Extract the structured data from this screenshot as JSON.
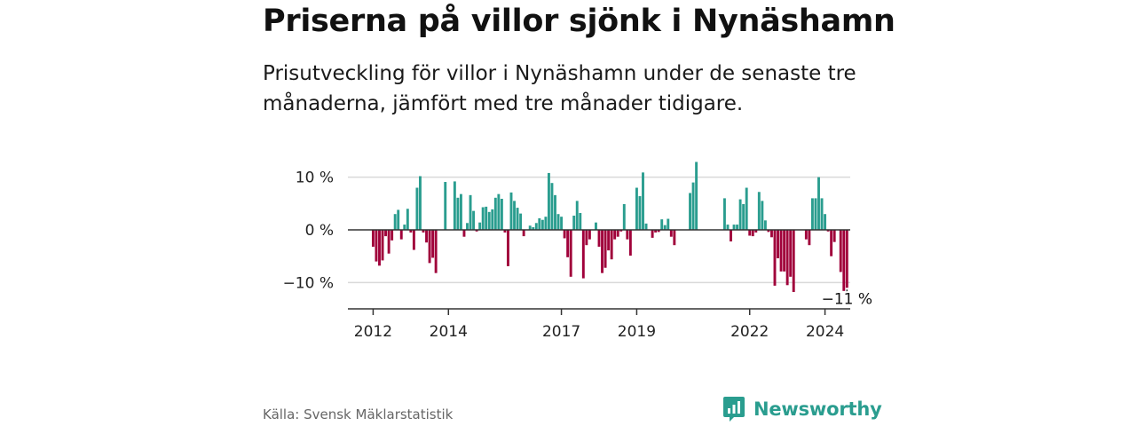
{
  "header": {
    "title": "Priserna på villor sjönk i Nynäshamn",
    "subtitle": "Prisutveckling för villor i Nynäshamn under de senaste tre månaderna, jämfört med tre månader tidigare."
  },
  "chart_data": {
    "type": "bar",
    "title": "Priserna på villor sjönk i Nynäshamn",
    "xlabel": "",
    "ylabel": "",
    "ylim": [
      -15,
      15
    ],
    "y_ticks": [
      {
        "value": 10,
        "label": "10 %"
      },
      {
        "value": 0,
        "label": "0 %"
      },
      {
        "value": -10,
        "label": "−10 %"
      }
    ],
    "x_range": [
      2011.33,
      2024.67
    ],
    "x_ticks": [
      {
        "value": 2012,
        "label": "2012"
      },
      {
        "value": 2014,
        "label": "2014"
      },
      {
        "value": 2017,
        "label": "2017"
      },
      {
        "value": 2019,
        "label": "2019"
      },
      {
        "value": 2022,
        "label": "2022"
      },
      {
        "value": 2024,
        "label": "2024"
      }
    ],
    "start_year": 2012,
    "start_month": 1,
    "values": [
      -3.2,
      -6,
      -6.8,
      -5.8,
      -1.2,
      -4.5,
      -2,
      3,
      3.8,
      -1.8,
      1,
      4,
      -0.5,
      -3.8,
      8,
      10.2,
      -0.5,
      -2.4,
      -6.3,
      -5.3,
      -8.2,
      0,
      0,
      9.1,
      0,
      0,
      9.2,
      6.1,
      6.8,
      -1.3,
      1.3,
      6.6,
      3.6,
      -0.3,
      1.4,
      4.3,
      4.4,
      3.4,
      3.9,
      6.1,
      6.8,
      5.9,
      -0.5,
      -6.9,
      7.1,
      5.5,
      4.2,
      3.1,
      -1.2,
      0,
      0.8,
      0.5,
      1.3,
      2.2,
      1.9,
      2.5,
      10.8,
      8.9,
      6.6,
      3,
      2.5,
      -1.6,
      -5.2,
      -8.9,
      2.7,
      5.5,
      3.2,
      -9.2,
      -2.9,
      -1.8,
      0,
      1.4,
      -3.2,
      -8.2,
      -7.2,
      -3.9,
      -5.6,
      -1.8,
      -1.3,
      -0.3,
      4.9,
      -1.8,
      -4.9,
      0,
      8,
      6.4,
      10.9,
      1.2,
      0,
      -1.5,
      -0.5,
      -0.4,
      2,
      0.9,
      2.1,
      -1.3,
      -2.9,
      0,
      0,
      0,
      0,
      7,
      9,
      12.9,
      0,
      0,
      0,
      0,
      0,
      0,
      0,
      0,
      6,
      1,
      -2.2,
      1,
      1,
      5.8,
      4.9,
      8,
      -1.1,
      -1.2,
      -0.5,
      7.2,
      5.5,
      1.8,
      -0.4,
      -1.4,
      -10.6,
      -5.4,
      -7.9,
      -7.9,
      -10.5,
      -8.9,
      -11.8,
      0,
      0,
      0,
      -1.8,
      -2.9,
      6,
      6,
      10,
      6,
      3,
      -0.3,
      -5,
      -2.3,
      0,
      -8,
      -11.6,
      -11
    ],
    "color_positive": "#2a9d8f",
    "color_negative": "#a0003a",
    "annotation": {
      "label": "−11 %",
      "value": -11
    }
  },
  "footer": {
    "source": "Källa: Svensk Mäklarstatistik",
    "brand": "Newsworthy",
    "brand_icon": "bar-chart-speech-icon",
    "brand_color": "#2a9d8f"
  }
}
